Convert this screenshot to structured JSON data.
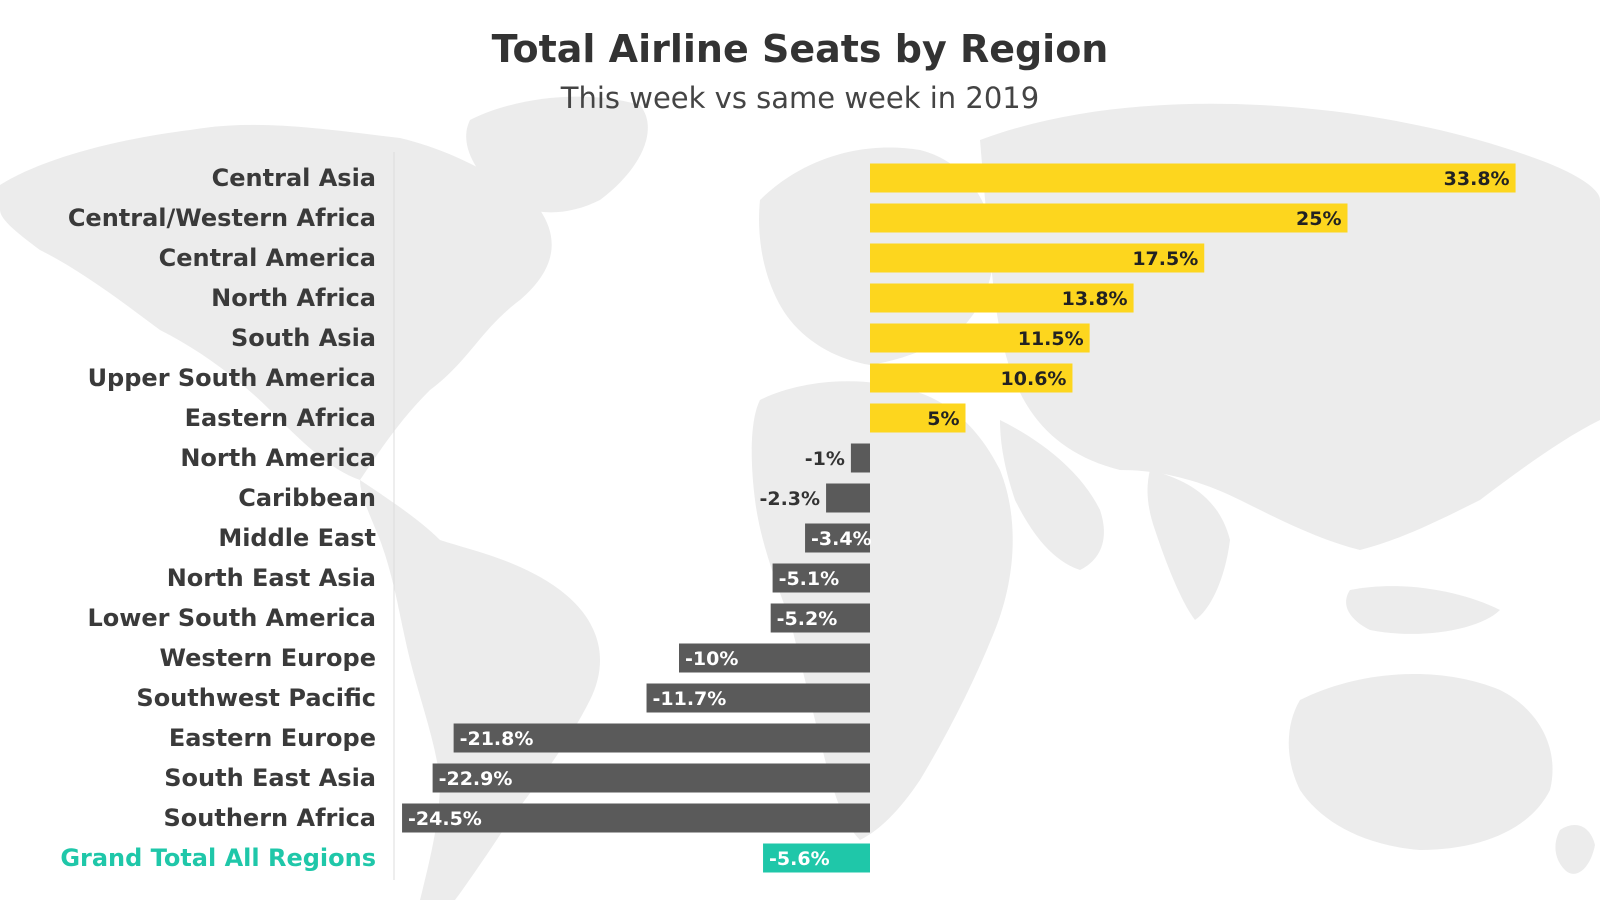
{
  "chart_data": {
    "type": "bar",
    "orientation": "horizontal",
    "title": "Total Airline Seats by Region",
    "subtitle": "This week vs same week in 2019",
    "categories": [
      "Central Asia",
      "Central/Western Africa",
      "Central America",
      "North Africa",
      "South Asia",
      "Upper South America",
      "Eastern Africa",
      "North America",
      "Caribbean",
      "Middle East",
      "North East Asia",
      "Lower South America",
      "Western Europe",
      "Southwest Pacific",
      "Eastern Europe",
      "South East Asia",
      "Southern Africa",
      "Grand Total All Regions"
    ],
    "values": [
      33.8,
      25,
      17.5,
      13.8,
      11.5,
      10.6,
      5,
      -1,
      -2.3,
      -3.4,
      -5.1,
      -5.2,
      -10,
      -11.7,
      -21.8,
      -22.9,
      -24.5,
      -5.6
    ],
    "value_labels": [
      "33.8%",
      "25%",
      "17.5%",
      "13.8%",
      "11.5%",
      "10.6%",
      "5%",
      "-1%",
      "-2.3%",
      "-3.4%",
      "-5.1%",
      "-5.2%",
      "-10%",
      "-11.7%",
      "-21.8%",
      "-22.9%",
      "-24.5%",
      "-5.6%"
    ],
    "highlight_category": "Grand Total All Regions",
    "colors": {
      "positive": "#FDD61E",
      "negative": "#5A5A5A",
      "total": "#1FC7A9",
      "label": "#3A3A3A",
      "total_label": "#1FC7A9",
      "map": "#EBEBEB"
    },
    "grid": false,
    "legend": "none"
  }
}
